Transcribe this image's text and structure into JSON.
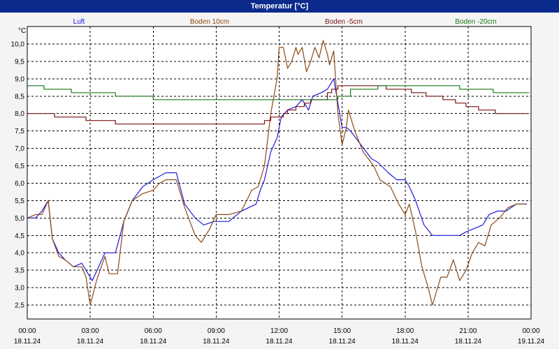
{
  "window": {
    "title": "Temperatur [°C]"
  },
  "colors": {
    "background": "#f4f4f4",
    "title_bar": "#0a2a8c",
    "grid": "#000000"
  },
  "chart_data": {
    "type": "line",
    "title": "Temperatur [°C]",
    "ylabel": "°C",
    "xlabel": "",
    "ylim": [
      2.1,
      10.5
    ],
    "yticks": [
      "2,5",
      "3,0",
      "3,5",
      "4,0",
      "4,5",
      "5,0",
      "5,5",
      "6,0",
      "6,5",
      "7,0",
      "7,5",
      "8,0",
      "8,5",
      "9,0",
      "9,5",
      "10,0"
    ],
    "ytick_values": [
      2.5,
      3.0,
      3.5,
      4.0,
      4.5,
      5.0,
      5.5,
      6.0,
      6.5,
      7.0,
      7.5,
      8.0,
      8.5,
      9.0,
      9.5,
      10.0
    ],
    "xlim": [
      0,
      24
    ],
    "xticks": [
      {
        "time": "00:00",
        "date": "18.11.24"
      },
      {
        "time": "03:00",
        "date": "18.11.24"
      },
      {
        "time": "06:00",
        "date": "18.11.24"
      },
      {
        "time": "09:00",
        "date": "18.11.24"
      },
      {
        "time": "12:00",
        "date": "18.11.24"
      },
      {
        "time": "15:00",
        "date": "18.11.24"
      },
      {
        "time": "18:00",
        "date": "18.11.24"
      },
      {
        "time": "21:00",
        "date": "18.11.24"
      },
      {
        "time": "00:00",
        "date": "19.11.24"
      }
    ],
    "grid": true,
    "legend_position": "top",
    "series": [
      {
        "name": "Luft",
        "color": "#1c1cdc",
        "step": false,
        "points": [
          [
            0,
            5.0
          ],
          [
            0.4,
            5.0
          ],
          [
            0.7,
            5.2
          ],
          [
            1.0,
            5.5
          ],
          [
            1.2,
            4.4
          ],
          [
            1.5,
            4.0
          ],
          [
            1.8,
            3.8
          ],
          [
            2.2,
            3.6
          ],
          [
            2.6,
            3.7
          ],
          [
            2.8,
            3.5
          ],
          [
            3.1,
            3.2
          ],
          [
            3.4,
            3.6
          ],
          [
            3.7,
            4.0
          ],
          [
            4.2,
            4.0
          ],
          [
            4.6,
            4.9
          ],
          [
            5.0,
            5.5
          ],
          [
            5.5,
            5.9
          ],
          [
            6.0,
            6.1
          ],
          [
            6.3,
            6.2
          ],
          [
            6.6,
            6.3
          ],
          [
            7.1,
            6.3
          ],
          [
            7.5,
            5.4
          ],
          [
            8.0,
            5.0
          ],
          [
            8.4,
            4.8
          ],
          [
            8.9,
            4.9
          ],
          [
            9.6,
            4.9
          ],
          [
            10.2,
            5.2
          ],
          [
            10.9,
            5.4
          ],
          [
            11.1,
            5.8
          ],
          [
            11.3,
            6.1
          ],
          [
            11.6,
            6.9
          ],
          [
            11.9,
            7.3
          ],
          [
            12.1,
            7.9
          ],
          [
            12.4,
            8.1
          ],
          [
            12.8,
            8.2
          ],
          [
            13.1,
            8.4
          ],
          [
            13.4,
            8.1
          ],
          [
            13.6,
            8.5
          ],
          [
            14.0,
            8.6
          ],
          [
            14.3,
            8.7
          ],
          [
            14.6,
            9.0
          ],
          [
            14.8,
            8.3
          ],
          [
            15.0,
            7.6
          ],
          [
            15.2,
            7.6
          ],
          [
            15.4,
            7.5
          ],
          [
            15.9,
            7.1
          ],
          [
            16.4,
            6.7
          ],
          [
            16.7,
            6.6
          ],
          [
            17.2,
            6.3
          ],
          [
            17.6,
            6.1
          ],
          [
            18.0,
            6.1
          ],
          [
            18.2,
            5.9
          ],
          [
            18.5,
            5.5
          ],
          [
            18.9,
            4.8
          ],
          [
            19.3,
            4.5
          ],
          [
            19.8,
            4.5
          ],
          [
            20.3,
            4.5
          ],
          [
            20.6,
            4.5
          ],
          [
            20.9,
            4.6
          ],
          [
            21.3,
            4.7
          ],
          [
            21.7,
            4.8
          ],
          [
            22.0,
            5.1
          ],
          [
            22.4,
            5.2
          ],
          [
            22.8,
            5.2
          ],
          [
            23.3,
            5.4
          ],
          [
            23.8,
            5.4
          ]
        ]
      },
      {
        "name": "Boden 10cm",
        "color": "#8c4a14",
        "step": false,
        "points": [
          [
            0,
            5.0
          ],
          [
            0.4,
            5.1
          ],
          [
            0.7,
            5.1
          ],
          [
            1.0,
            5.5
          ],
          [
            1.2,
            4.4
          ],
          [
            1.5,
            3.9
          ],
          [
            1.8,
            3.8
          ],
          [
            2.2,
            3.6
          ],
          [
            2.6,
            3.6
          ],
          [
            2.8,
            3.3
          ],
          [
            3.0,
            2.5
          ],
          [
            3.3,
            3.2
          ],
          [
            3.7,
            3.9
          ],
          [
            3.9,
            3.4
          ],
          [
            4.3,
            3.4
          ],
          [
            4.6,
            4.9
          ],
          [
            5.0,
            5.5
          ],
          [
            5.5,
            5.7
          ],
          [
            6.0,
            5.8
          ],
          [
            6.3,
            6.0
          ],
          [
            6.6,
            6.1
          ],
          [
            7.1,
            6.1
          ],
          [
            7.5,
            5.3
          ],
          [
            8.0,
            4.5
          ],
          [
            8.3,
            4.3
          ],
          [
            8.7,
            4.7
          ],
          [
            9.0,
            5.1
          ],
          [
            9.6,
            5.1
          ],
          [
            10.2,
            5.2
          ],
          [
            10.7,
            5.8
          ],
          [
            11.0,
            5.9
          ],
          [
            11.3,
            6.5
          ],
          [
            11.6,
            8.0
          ],
          [
            11.9,
            9.0
          ],
          [
            12.0,
            9.9
          ],
          [
            12.2,
            9.9
          ],
          [
            12.4,
            9.3
          ],
          [
            12.6,
            9.5
          ],
          [
            12.8,
            9.9
          ],
          [
            12.9,
            9.7
          ],
          [
            13.1,
            9.9
          ],
          [
            13.3,
            9.2
          ],
          [
            13.5,
            9.5
          ],
          [
            13.7,
            9.9
          ],
          [
            13.9,
            9.6
          ],
          [
            14.1,
            10.1
          ],
          [
            14.3,
            9.7
          ],
          [
            14.4,
            9.4
          ],
          [
            14.6,
            9.8
          ],
          [
            14.8,
            8.0
          ],
          [
            15.0,
            7.1
          ],
          [
            15.2,
            7.6
          ],
          [
            15.3,
            8.1
          ],
          [
            15.6,
            7.5
          ],
          [
            16.0,
            6.9
          ],
          [
            16.5,
            6.5
          ],
          [
            16.8,
            6.1
          ],
          [
            17.3,
            5.9
          ],
          [
            17.7,
            5.4
          ],
          [
            18.0,
            5.1
          ],
          [
            18.2,
            5.4
          ],
          [
            18.5,
            4.6
          ],
          [
            18.8,
            3.6
          ],
          [
            19.1,
            3.0
          ],
          [
            19.3,
            2.5
          ],
          [
            19.7,
            3.3
          ],
          [
            20.0,
            3.3
          ],
          [
            20.3,
            3.8
          ],
          [
            20.6,
            3.2
          ],
          [
            20.9,
            3.5
          ],
          [
            21.2,
            4.0
          ],
          [
            21.5,
            4.3
          ],
          [
            21.8,
            4.2
          ],
          [
            22.1,
            4.8
          ],
          [
            22.5,
            5.0
          ],
          [
            22.9,
            5.3
          ],
          [
            23.3,
            5.4
          ],
          [
            23.7,
            5.4
          ]
        ]
      },
      {
        "name": "Boden -5cm",
        "color": "#7a1414",
        "step": true,
        "points": [
          [
            0,
            8.0
          ],
          [
            1.3,
            7.9
          ],
          [
            2.8,
            7.8
          ],
          [
            4.2,
            7.7
          ],
          [
            11.3,
            7.8
          ],
          [
            11.6,
            7.9
          ],
          [
            12.2,
            8.0
          ],
          [
            12.4,
            8.1
          ],
          [
            12.8,
            8.2
          ],
          [
            13.2,
            8.3
          ],
          [
            13.5,
            8.4
          ],
          [
            14.3,
            8.6
          ],
          [
            14.5,
            8.7
          ],
          [
            14.8,
            8.8
          ],
          [
            16.3,
            8.8
          ],
          [
            17.1,
            8.7
          ],
          [
            18.3,
            8.6
          ],
          [
            19.0,
            8.5
          ],
          [
            19.8,
            8.4
          ],
          [
            20.4,
            8.3
          ],
          [
            20.9,
            8.2
          ],
          [
            21.5,
            8.1
          ],
          [
            22.3,
            8.0
          ],
          [
            23.9,
            8.0
          ]
        ]
      },
      {
        "name": "Boden -20cm",
        "color": "#1a7a1a",
        "step": true,
        "points": [
          [
            0,
            8.8
          ],
          [
            0.8,
            8.7
          ],
          [
            2.1,
            8.6
          ],
          [
            4.2,
            8.5
          ],
          [
            6.0,
            8.4
          ],
          [
            14.8,
            8.5
          ],
          [
            15.4,
            8.7
          ],
          [
            16.7,
            8.8
          ],
          [
            20.6,
            8.7
          ],
          [
            22.2,
            8.6
          ],
          [
            23.9,
            8.6
          ]
        ]
      }
    ]
  }
}
